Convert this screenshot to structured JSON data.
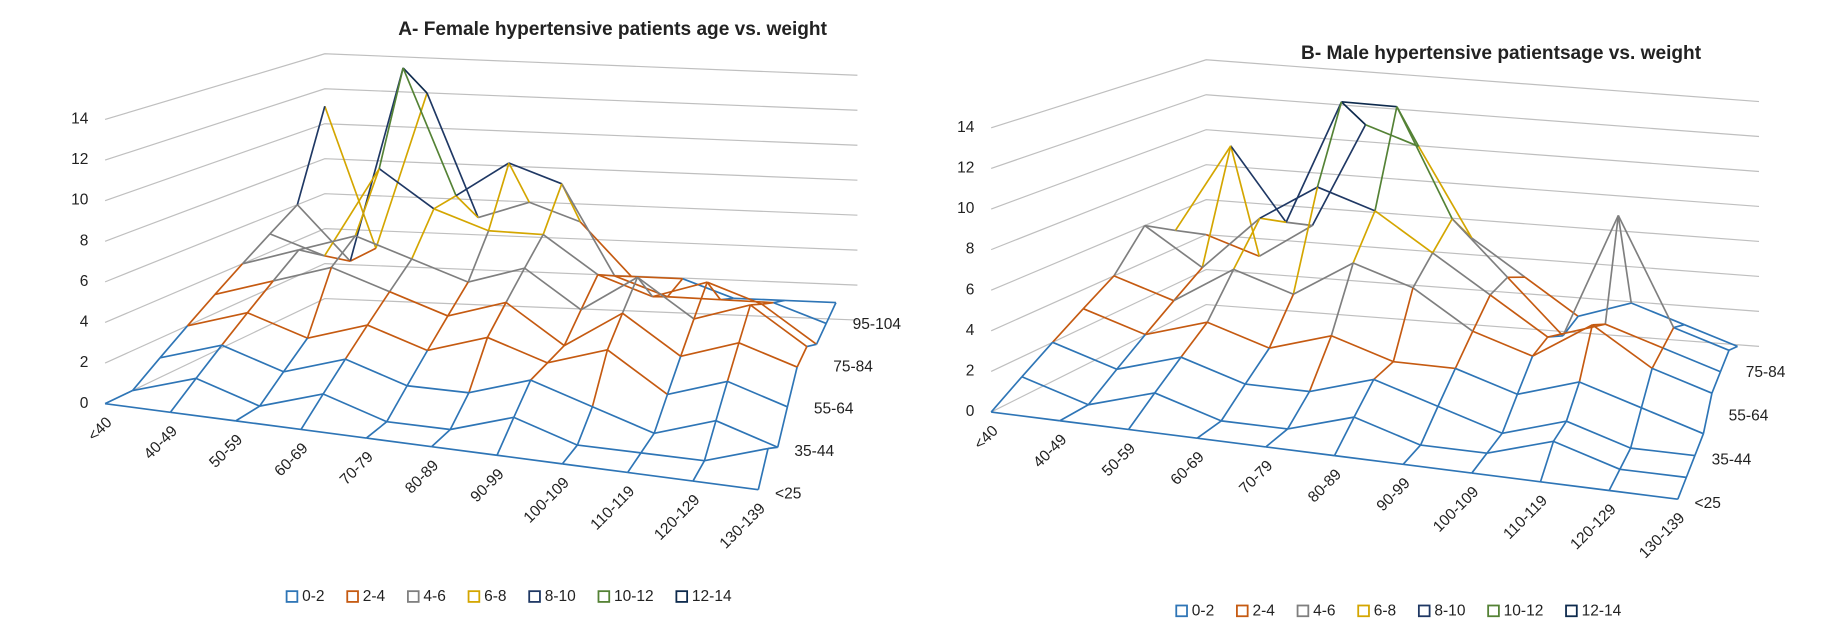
{
  "chart_data": [
    {
      "type": "surface",
      "title": "A- Female hypertensive patients age vs. weight",
      "categories": [
        "<40",
        "40-49",
        "50-59",
        "60-69",
        "70-79",
        "80-89",
        "90-99",
        "100-109",
        "110-119",
        "120-129",
        "130-139"
      ],
      "rows": [
        "<25",
        null,
        "35-44",
        null,
        "55-64",
        null,
        "75-84",
        null,
        "95-104"
      ],
      "values": [
        [
          0,
          0,
          0,
          0,
          0,
          0,
          0,
          0,
          0,
          0,
          0
        ],
        [
          0,
          1,
          0,
          1,
          0,
          0,
          1,
          0,
          0,
          0,
          1
        ],
        [
          1,
          2,
          1,
          2,
          1,
          1,
          2,
          1,
          0,
          1,
          0
        ],
        [
          2,
          3,
          2,
          3,
          2,
          3,
          2,
          3,
          1,
          2,
          1
        ],
        [
          3,
          4,
          5,
          4,
          3,
          4,
          2,
          4,
          2,
          3,
          2
        ],
        [
          4,
          5,
          6,
          5,
          4,
          5,
          3,
          5,
          3,
          4,
          2
        ],
        [
          5,
          4,
          9,
          7,
          6,
          6,
          4,
          3,
          4,
          3,
          1
        ],
        [
          6,
          3,
          14,
          7,
          9,
          8,
          3,
          2,
          2,
          2,
          1
        ],
        [
          11,
          3,
          12,
          5,
          6,
          5,
          2,
          2,
          1,
          1,
          1
        ]
      ],
      "ylim": [
        0,
        14
      ],
      "yticks": [
        0,
        2,
        4,
        6,
        8,
        10,
        12,
        14
      ],
      "legend": [
        "0-2",
        "2-4",
        "4-6",
        "6-8",
        "8-10",
        "10-12",
        "12-14"
      ],
      "band_colors": [
        "#2e75b6",
        "#c55a11",
        "#7f7f7f",
        "#d4a600",
        "#1f3864",
        "#548235",
        "#0d2a4d"
      ]
    },
    {
      "type": "surface",
      "title": "B- Male hypertensive patientsage vs. weight",
      "categories": [
        "<40",
        "40-49",
        "50-59",
        "60-69",
        "70-79",
        "80-89",
        "90-99",
        "100-109",
        "110-119",
        "120-129",
        "130-139"
      ],
      "rows": [
        "<25",
        null,
        "35-44",
        null,
        "55-64",
        null,
        "75-84",
        null
      ],
      "values": [
        [
          0,
          0,
          0,
          0,
          0,
          0,
          0,
          0,
          0,
          0,
          0
        ],
        [
          1,
          0,
          1,
          0,
          0,
          1,
          0,
          0,
          1,
          0,
          0
        ],
        [
          2,
          1,
          2,
          1,
          1,
          2,
          1,
          0,
          1,
          0,
          0
        ],
        [
          3,
          2,
          3,
          2,
          3,
          2,
          2,
          1,
          2,
          1,
          0
        ],
        [
          4,
          3,
          5,
          4,
          6,
          5,
          3,
          2,
          4,
          2,
          1
        ],
        [
          6,
          4,
          7,
          9,
          8,
          6,
          4,
          2,
          3,
          2,
          1
        ],
        [
          5,
          10,
          6,
          13,
          13,
          7,
          4,
          1,
          8,
          2,
          1
        ],
        [
          4,
          3,
          5,
          11,
          10,
          5,
          3,
          1,
          2,
          1,
          0
        ]
      ],
      "ylim": [
        0,
        14
      ],
      "yticks": [
        0,
        2,
        4,
        6,
        8,
        10,
        12,
        14
      ],
      "legend": [
        "0-2",
        "2-4",
        "4-6",
        "6-8",
        "8-10",
        "10-12",
        "12-14"
      ],
      "band_colors": [
        "#2e75b6",
        "#c55a11",
        "#7f7f7f",
        "#d4a600",
        "#1f3864",
        "#548235",
        "#0d2a4d"
      ]
    }
  ]
}
